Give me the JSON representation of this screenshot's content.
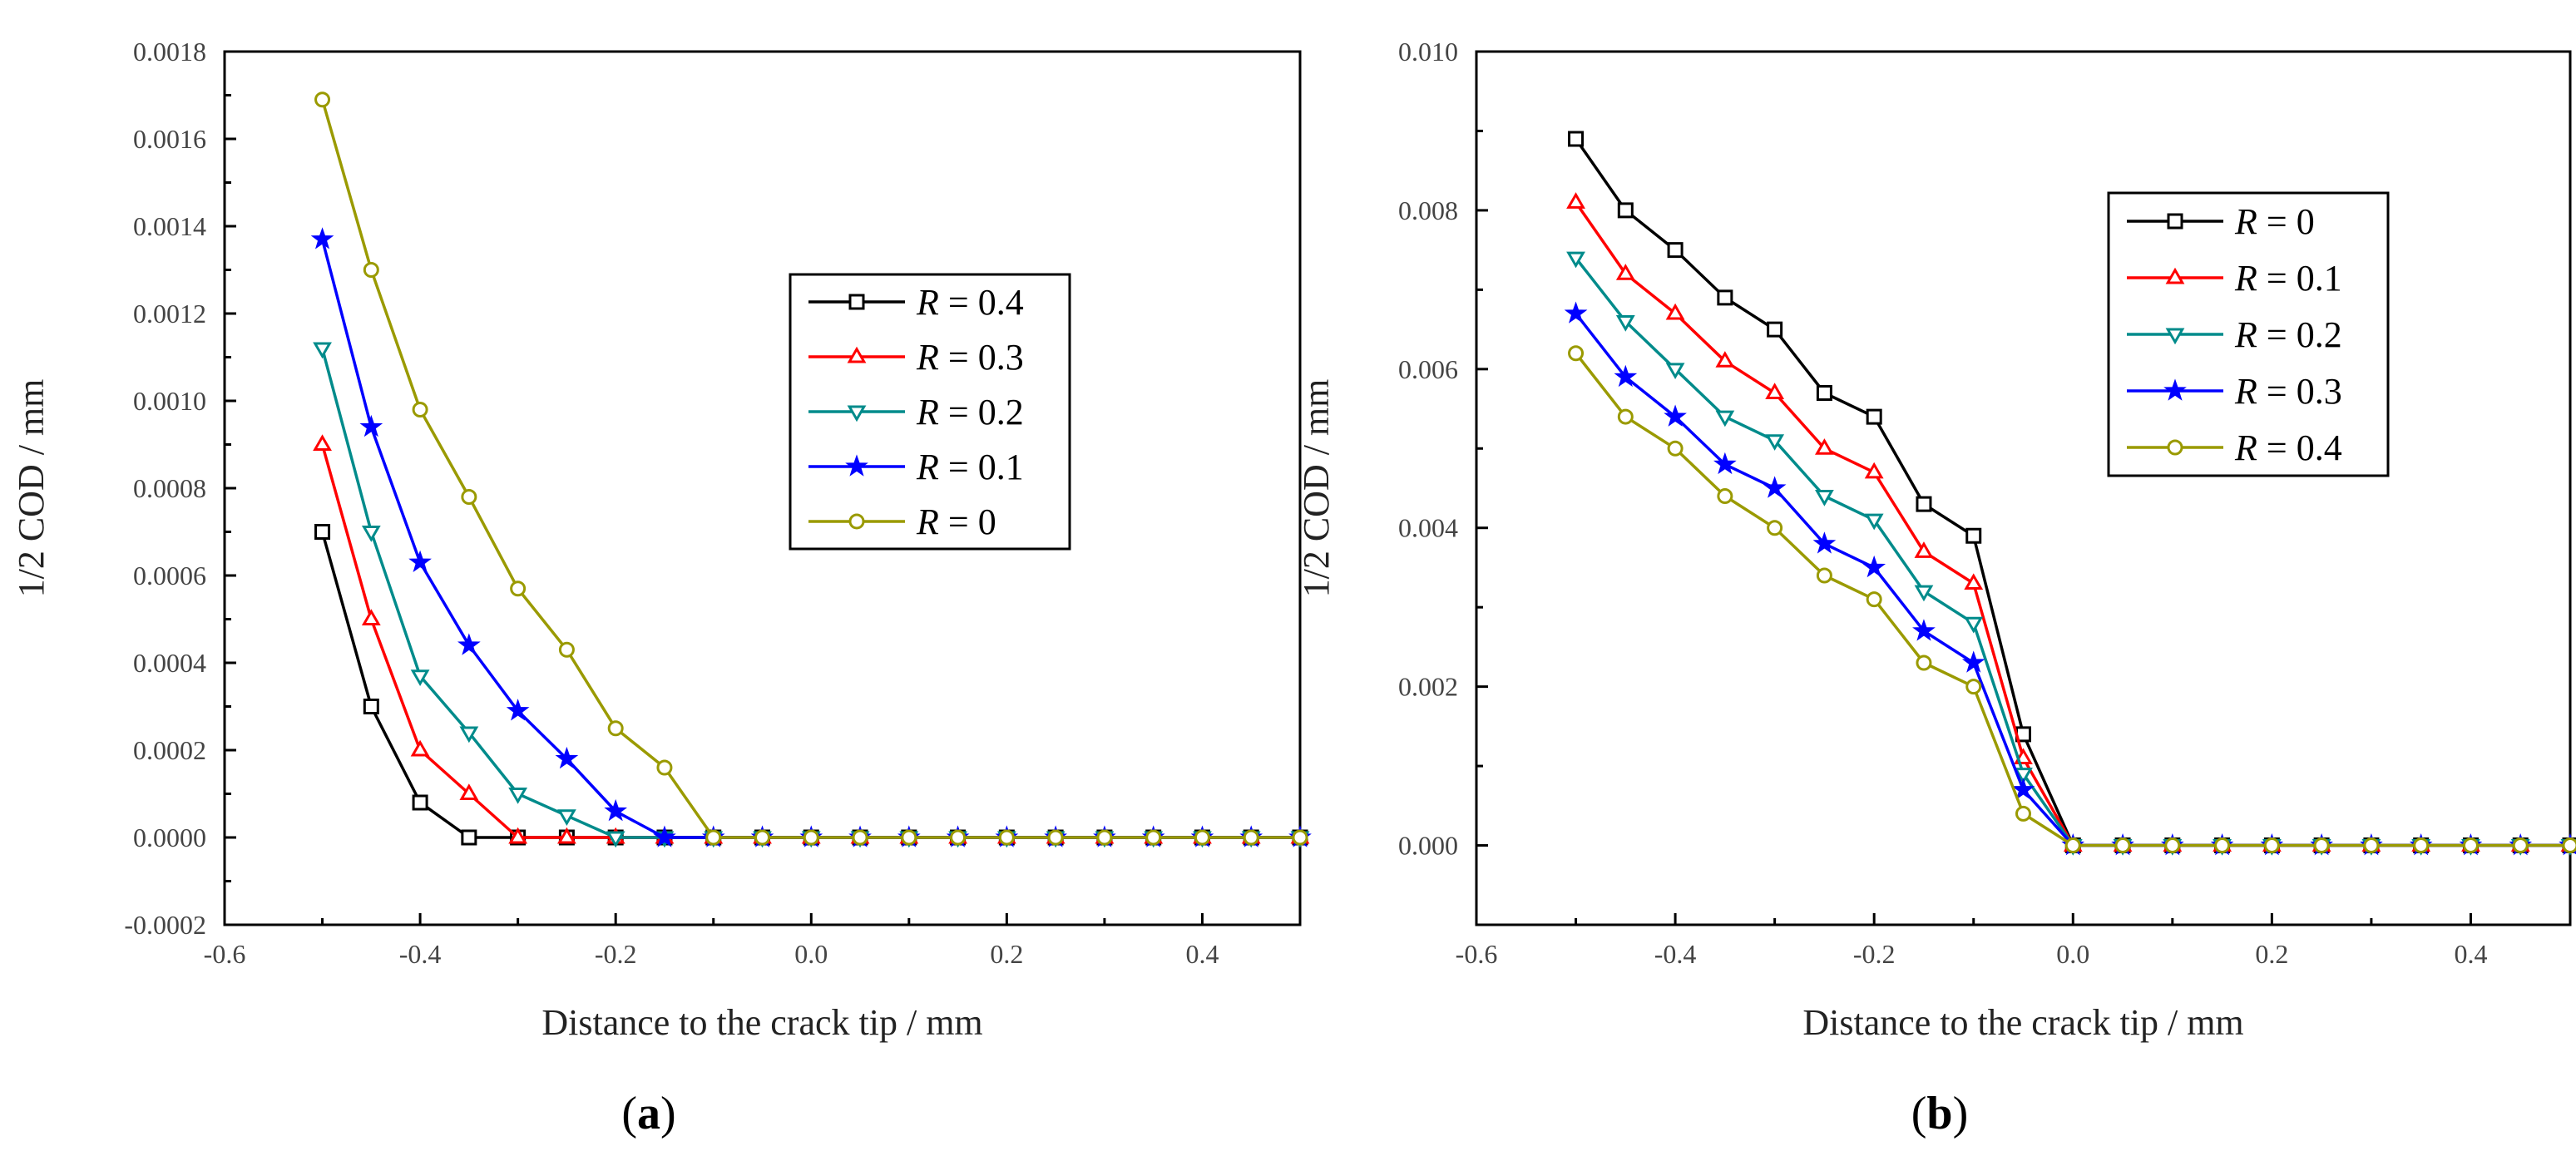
{
  "chart_data": [
    {
      "id": "a",
      "type": "line",
      "panel_label": "a",
      "xlabel": "Distance to the crack tip / mm",
      "ylabel": "1/2 COD / mm",
      "xlim": [
        -0.6,
        0.5
      ],
      "ylim": [
        -0.0002,
        0.0018
      ],
      "xticks": [
        -0.6,
        -0.4,
        -0.2,
        0.0,
        0.2,
        0.4
      ],
      "xtick_labels": [
        "-0.6",
        "-0.4",
        "-0.2",
        "0.0",
        "0.2",
        "0.4"
      ],
      "yticks": [
        -0.0002,
        0.0,
        0.0002,
        0.0004,
        0.0006,
        0.0008,
        0.001,
        0.0012,
        0.0014,
        0.0016,
        0.0018
      ],
      "ytick_labels": [
        "-0.0002",
        "0.0000",
        "0.0002",
        "0.0004",
        "0.0006",
        "0.0008",
        "0.0010",
        "0.0012",
        "0.0014",
        "0.0016",
        "0.0018"
      ],
      "legend_position": "center-right",
      "x": [
        -0.5,
        -0.45,
        -0.4,
        -0.35,
        -0.3,
        -0.25,
        -0.2,
        -0.15,
        -0.1,
        -0.05,
        0.0,
        0.05,
        0.1,
        0.15,
        0.2,
        0.25,
        0.3,
        0.35,
        0.4,
        0.45,
        0.5
      ],
      "series": [
        {
          "name": "R = 0.4",
          "label_var": "R",
          "label_val": " = 0.4",
          "color": "#000000",
          "marker": "square",
          "values": [
            0.0007,
            0.0003,
            8e-05,
            0.0,
            0.0,
            0.0,
            0.0,
            0.0,
            0.0,
            0.0,
            0.0,
            0.0,
            0.0,
            0.0,
            0.0,
            0.0,
            0.0,
            0.0,
            0.0,
            0.0,
            0.0
          ]
        },
        {
          "name": "R = 0.3",
          "label_var": "R",
          "label_val": " = 0.3",
          "color": "#ff0000",
          "marker": "triangle-up",
          "values": [
            0.0009,
            0.0005,
            0.0002,
            0.0001,
            0.0,
            0.0,
            0.0,
            0.0,
            0.0,
            0.0,
            0.0,
            0.0,
            0.0,
            0.0,
            0.0,
            0.0,
            0.0,
            0.0,
            0.0,
            0.0,
            0.0
          ]
        },
        {
          "name": "R = 0.2",
          "label_var": "R",
          "label_val": " = 0.2",
          "color": "#008b8b",
          "marker": "triangle-down",
          "values": [
            0.00112,
            0.0007,
            0.00037,
            0.00024,
            0.0001,
            5e-05,
            0.0,
            0.0,
            0.0,
            0.0,
            0.0,
            0.0,
            0.0,
            0.0,
            0.0,
            0.0,
            0.0,
            0.0,
            0.0,
            0.0,
            0.0
          ]
        },
        {
          "name": "R = 0.1",
          "label_var": "R",
          "label_val": " = 0.1",
          "color": "#0000ff",
          "marker": "star",
          "values": [
            0.00137,
            0.00094,
            0.00063,
            0.00044,
            0.00029,
            0.00018,
            6e-05,
            0.0,
            0.0,
            0.0,
            0.0,
            0.0,
            0.0,
            0.0,
            0.0,
            0.0,
            0.0,
            0.0,
            0.0,
            0.0,
            0.0
          ]
        },
        {
          "name": "R = 0",
          "label_var": "R",
          "label_val": " = 0",
          "color": "#9a9a00",
          "marker": "circle",
          "values": [
            0.00169,
            0.0013,
            0.00098,
            0.00078,
            0.00057,
            0.00043,
            0.00025,
            0.00016,
            0.0,
            0.0,
            0.0,
            0.0,
            0.0,
            0.0,
            0.0,
            0.0,
            0.0,
            0.0,
            0.0,
            0.0,
            0.0
          ]
        }
      ]
    },
    {
      "id": "b",
      "type": "line",
      "panel_label": "b",
      "xlabel": "Distance to the crack tip / mm",
      "ylabel": "1/2 COD / mm",
      "xlim": [
        -0.6,
        0.5
      ],
      "ylim": [
        -0.001,
        0.01
      ],
      "xticks": [
        -0.6,
        -0.4,
        -0.2,
        0.0,
        0.2,
        0.4
      ],
      "xtick_labels": [
        "-0.6",
        "-0.4",
        "-0.2",
        "0.0",
        "0.2",
        "0.4"
      ],
      "yticks": [
        0.0,
        0.002,
        0.004,
        0.006,
        0.008,
        0.01
      ],
      "ytick_labels": [
        "0.000",
        "0.002",
        "0.004",
        "0.006",
        "0.008",
        "0.010"
      ],
      "legend_position": "top-right",
      "x": [
        -0.5,
        -0.45,
        -0.4,
        -0.35,
        -0.3,
        -0.25,
        -0.2,
        -0.15,
        -0.1,
        -0.05,
        0.0,
        0.05,
        0.1,
        0.15,
        0.2,
        0.25,
        0.3,
        0.35,
        0.4,
        0.45,
        0.5
      ],
      "series": [
        {
          "name": "R = 0",
          "label_var": "R",
          "label_val": " = 0",
          "color": "#000000",
          "marker": "square",
          "values": [
            0.0089,
            0.008,
            0.0075,
            0.0069,
            0.0065,
            0.0057,
            0.0054,
            0.0043,
            0.0039,
            0.0014,
            0.0,
            0.0,
            0.0,
            0.0,
            0.0,
            0.0,
            0.0,
            0.0,
            0.0,
            0.0,
            0.0
          ]
        },
        {
          "name": "R = 0.1",
          "label_var": "R",
          "label_val": " = 0.1",
          "color": "#ff0000",
          "marker": "triangle-up",
          "values": [
            0.0081,
            0.0072,
            0.0067,
            0.0061,
            0.0057,
            0.005,
            0.0047,
            0.0037,
            0.0033,
            0.0011,
            0.0,
            0.0,
            0.0,
            0.0,
            0.0,
            0.0,
            0.0,
            0.0,
            0.0,
            0.0,
            0.0
          ]
        },
        {
          "name": "R = 0.2",
          "label_var": "R",
          "label_val": " = 0.2",
          "color": "#008b8b",
          "marker": "triangle-down",
          "values": [
            0.0074,
            0.0066,
            0.006,
            0.0054,
            0.0051,
            0.0044,
            0.0041,
            0.0032,
            0.0028,
            0.0009,
            0.0,
            0.0,
            0.0,
            0.0,
            0.0,
            0.0,
            0.0,
            0.0,
            0.0,
            0.0,
            0.0
          ]
        },
        {
          "name": "R = 0.3",
          "label_var": "R",
          "label_val": " = 0.3",
          "color": "#0000ff",
          "marker": "star",
          "values": [
            0.0067,
            0.0059,
            0.0054,
            0.0048,
            0.0045,
            0.0038,
            0.0035,
            0.0027,
            0.0023,
            0.0007,
            0.0,
            0.0,
            0.0,
            0.0,
            0.0,
            0.0,
            0.0,
            0.0,
            0.0,
            0.0,
            0.0
          ]
        },
        {
          "name": "R = 0.4",
          "label_var": "R",
          "label_val": " = 0.4",
          "color": "#9a9a00",
          "marker": "circle",
          "values": [
            0.0062,
            0.0054,
            0.005,
            0.0044,
            0.004,
            0.0034,
            0.0031,
            0.0023,
            0.002,
            0.0004,
            0.0,
            0.0,
            0.0,
            0.0,
            0.0,
            0.0,
            0.0,
            0.0,
            0.0,
            0.0,
            0.0
          ]
        }
      ]
    }
  ]
}
